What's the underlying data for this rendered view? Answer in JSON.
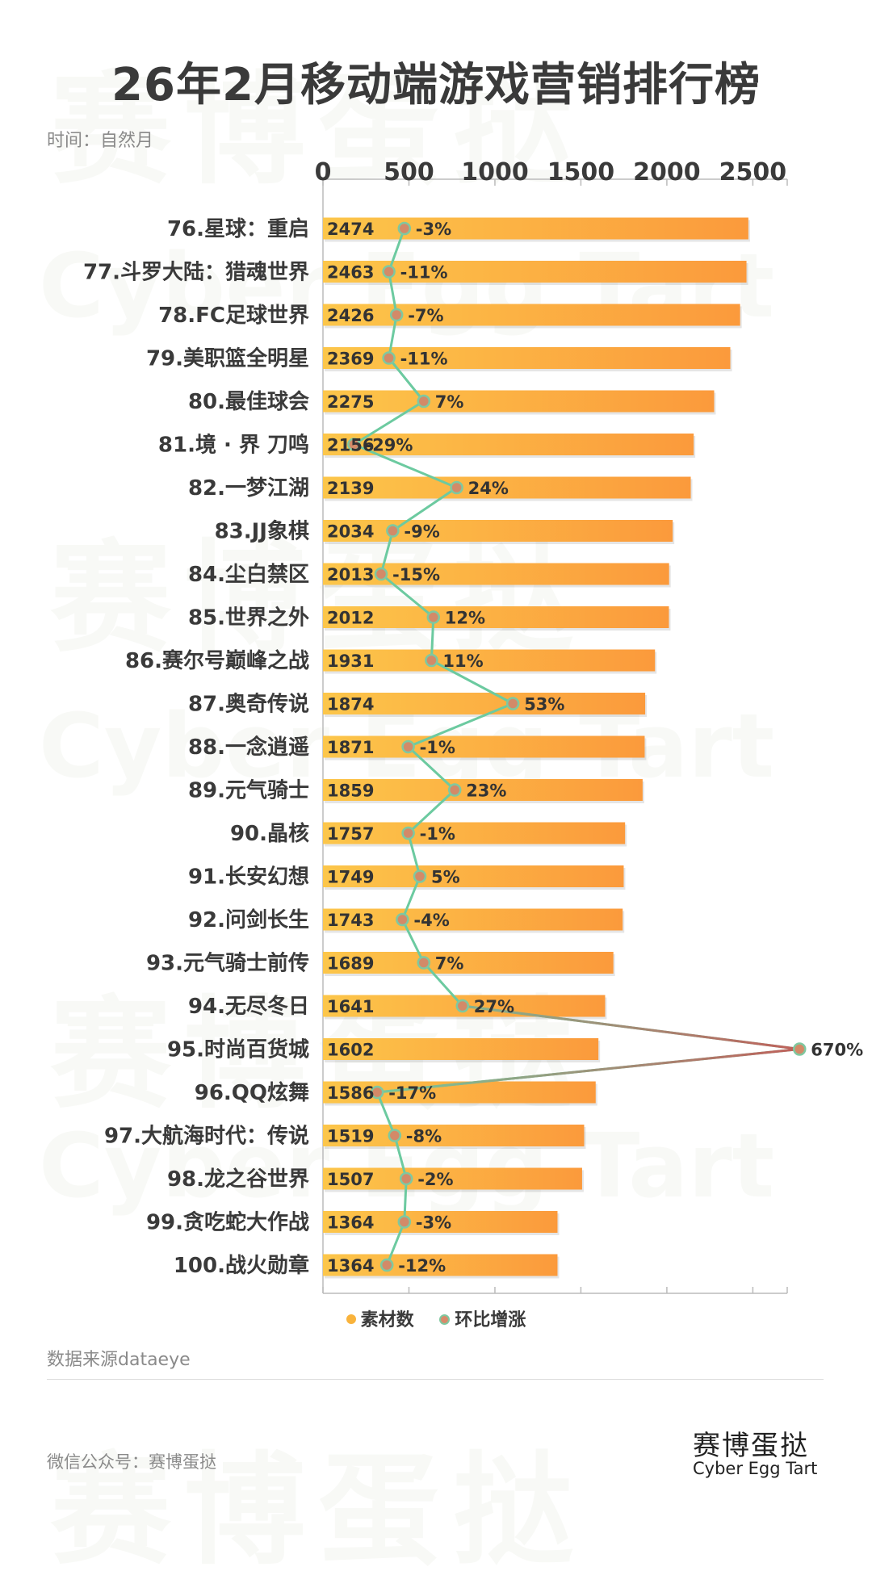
{
  "header": {
    "title": "26年2月移动端游戏营销排行榜",
    "subtitle": "时间：自然月"
  },
  "watermark": {
    "cn": "赛博蛋挞",
    "en": "Cyber Egg Tart"
  },
  "chart_data": {
    "type": "bar",
    "orientation": "horizontal",
    "title": "26年2月移动端游戏营销排行榜",
    "categories": [
      "76.星球：重启",
      "77.斗罗大陆：猎魂世界",
      "78.FC足球世界",
      "79.美职篮全明星",
      "80.最佳球会",
      "81.境 · 界 刀鸣",
      "82.一梦江湖",
      "83.JJ象棋",
      "84.尘白禁区",
      "85.世界之外",
      "86.赛尔号巅峰之战",
      "87.奥奇传说",
      "88.一念逍遥",
      "89.元气骑士",
      "90.晶核",
      "91.长安幻想",
      "92.问剑长生",
      "93.元气骑士前传",
      "94.无尽冬日",
      "95.时尚百货城",
      "96.QQ炫舞",
      "97.大航海时代：传说",
      "98.龙之谷世界",
      "99.贪吃蛇大作战",
      "100.战火勋章"
    ],
    "series": [
      {
        "name": "素材数",
        "type": "bar",
        "values": [
          2474,
          2463,
          2426,
          2369,
          2275,
          2156,
          2139,
          2034,
          2013,
          2012,
          1931,
          1874,
          1871,
          1859,
          1757,
          1749,
          1743,
          1689,
          1641,
          1602,
          1586,
          1519,
          1507,
          1364,
          1364
        ],
        "color": "#f9a03c"
      },
      {
        "name": "环比增涨",
        "type": "line",
        "values": [
          -3,
          -11,
          -7,
          -11,
          7,
          -29,
          24,
          -9,
          -15,
          12,
          11,
          53,
          -1,
          23,
          -1,
          5,
          -4,
          7,
          27,
          670,
          -17,
          -8,
          -2,
          -3,
          -12
        ],
        "labels": [
          "-3%",
          "-11%",
          "-7%",
          "-11%",
          "7%",
          "-29%",
          "24%",
          "-9%",
          "-15%",
          "12%",
          "11%",
          "53%",
          "-1%",
          "23%",
          "-1%",
          "5%",
          "-4%",
          "7%",
          "27%",
          "670%",
          "-17%",
          "-8%",
          "-2%",
          "-3%",
          "-12%"
        ],
        "color": "#6ccaa0"
      }
    ],
    "xlim": [
      0,
      2700
    ],
    "xticks": [
      "0",
      "500",
      "1000",
      "1500",
      "2000",
      "2500"
    ],
    "xtick_values": [
      0,
      500,
      1000,
      1500,
      2000,
      2500
    ],
    "legend_position": "bottom-center",
    "grid": false
  },
  "legend": {
    "bar": "素材数",
    "line": "环比增涨"
  },
  "footer": {
    "source": "数据来源dataeye",
    "wechat": "微信公众号：赛博蛋挞",
    "brand_cn": "赛博蛋挞",
    "brand_en": "Cyber Egg Tart"
  }
}
